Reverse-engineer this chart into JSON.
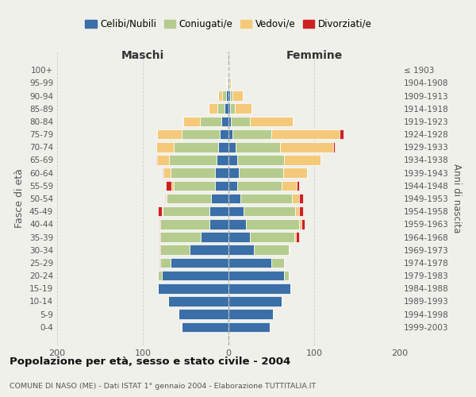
{
  "age_groups": [
    "0-4",
    "5-9",
    "10-14",
    "15-19",
    "20-24",
    "25-29",
    "30-34",
    "35-39",
    "40-44",
    "45-49",
    "50-54",
    "55-59",
    "60-64",
    "65-69",
    "70-74",
    "75-79",
    "80-84",
    "85-89",
    "90-94",
    "95-99",
    "100+"
  ],
  "birth_years": [
    "1999-2003",
    "1994-1998",
    "1989-1993",
    "1984-1988",
    "1979-1983",
    "1974-1978",
    "1969-1973",
    "1964-1968",
    "1959-1963",
    "1954-1958",
    "1949-1953",
    "1944-1948",
    "1939-1943",
    "1934-1938",
    "1929-1933",
    "1924-1928",
    "1919-1923",
    "1914-1918",
    "1909-1913",
    "1904-1908",
    "≤ 1903"
  ],
  "maschi": {
    "celibi": [
      55,
      58,
      70,
      82,
      78,
      68,
      45,
      32,
      22,
      22,
      20,
      16,
      16,
      14,
      12,
      10,
      8,
      5,
      3,
      1,
      1
    ],
    "coniugati": [
      0,
      0,
      0,
      0,
      4,
      12,
      35,
      48,
      58,
      55,
      52,
      48,
      52,
      55,
      52,
      45,
      25,
      8,
      4,
      1,
      0
    ],
    "vedovi": [
      0,
      0,
      0,
      0,
      0,
      0,
      0,
      0,
      0,
      1,
      1,
      3,
      8,
      14,
      20,
      28,
      20,
      10,
      5,
      1,
      0
    ],
    "divorziati": [
      0,
      0,
      0,
      0,
      0,
      1,
      1,
      1,
      1,
      4,
      1,
      6,
      1,
      1,
      0,
      0,
      0,
      0,
      0,
      0,
      0
    ]
  },
  "femmine": {
    "nubili": [
      48,
      52,
      62,
      72,
      65,
      50,
      30,
      25,
      20,
      18,
      14,
      10,
      12,
      10,
      8,
      5,
      3,
      2,
      2,
      1,
      0
    ],
    "coniugate": [
      0,
      0,
      0,
      0,
      5,
      15,
      40,
      52,
      62,
      60,
      60,
      52,
      52,
      55,
      52,
      45,
      22,
      5,
      3,
      0,
      0
    ],
    "vedove": [
      0,
      0,
      0,
      0,
      0,
      0,
      1,
      2,
      3,
      4,
      8,
      18,
      28,
      42,
      62,
      80,
      50,
      20,
      12,
      2,
      0
    ],
    "divorziate": [
      0,
      0,
      0,
      0,
      0,
      0,
      0,
      3,
      4,
      5,
      5,
      2,
      0,
      0,
      2,
      4,
      0,
      0,
      0,
      0,
      0
    ]
  },
  "colors": {
    "celibi": "#3a6fa8",
    "coniugati": "#b5cc8e",
    "vedovi": "#f5c97a",
    "divorziati": "#cc2222"
  },
  "xlim": 200,
  "title": "Popolazione per età, sesso e stato civile - 2004",
  "subtitle": "COMUNE DI NASO (ME) - Dati ISTAT 1° gennaio 2004 - Elaborazione TUTTITALIA.IT",
  "ylabel": "Fasce di età",
  "ylabel_right": "Anni di nascita",
  "legend_labels": [
    "Celibi/Nubili",
    "Coniugati/e",
    "Vedovi/e",
    "Divorziati/e"
  ],
  "maschi_label": "Maschi",
  "femmine_label": "Femmine",
  "bg_color": "#f0f0eb"
}
